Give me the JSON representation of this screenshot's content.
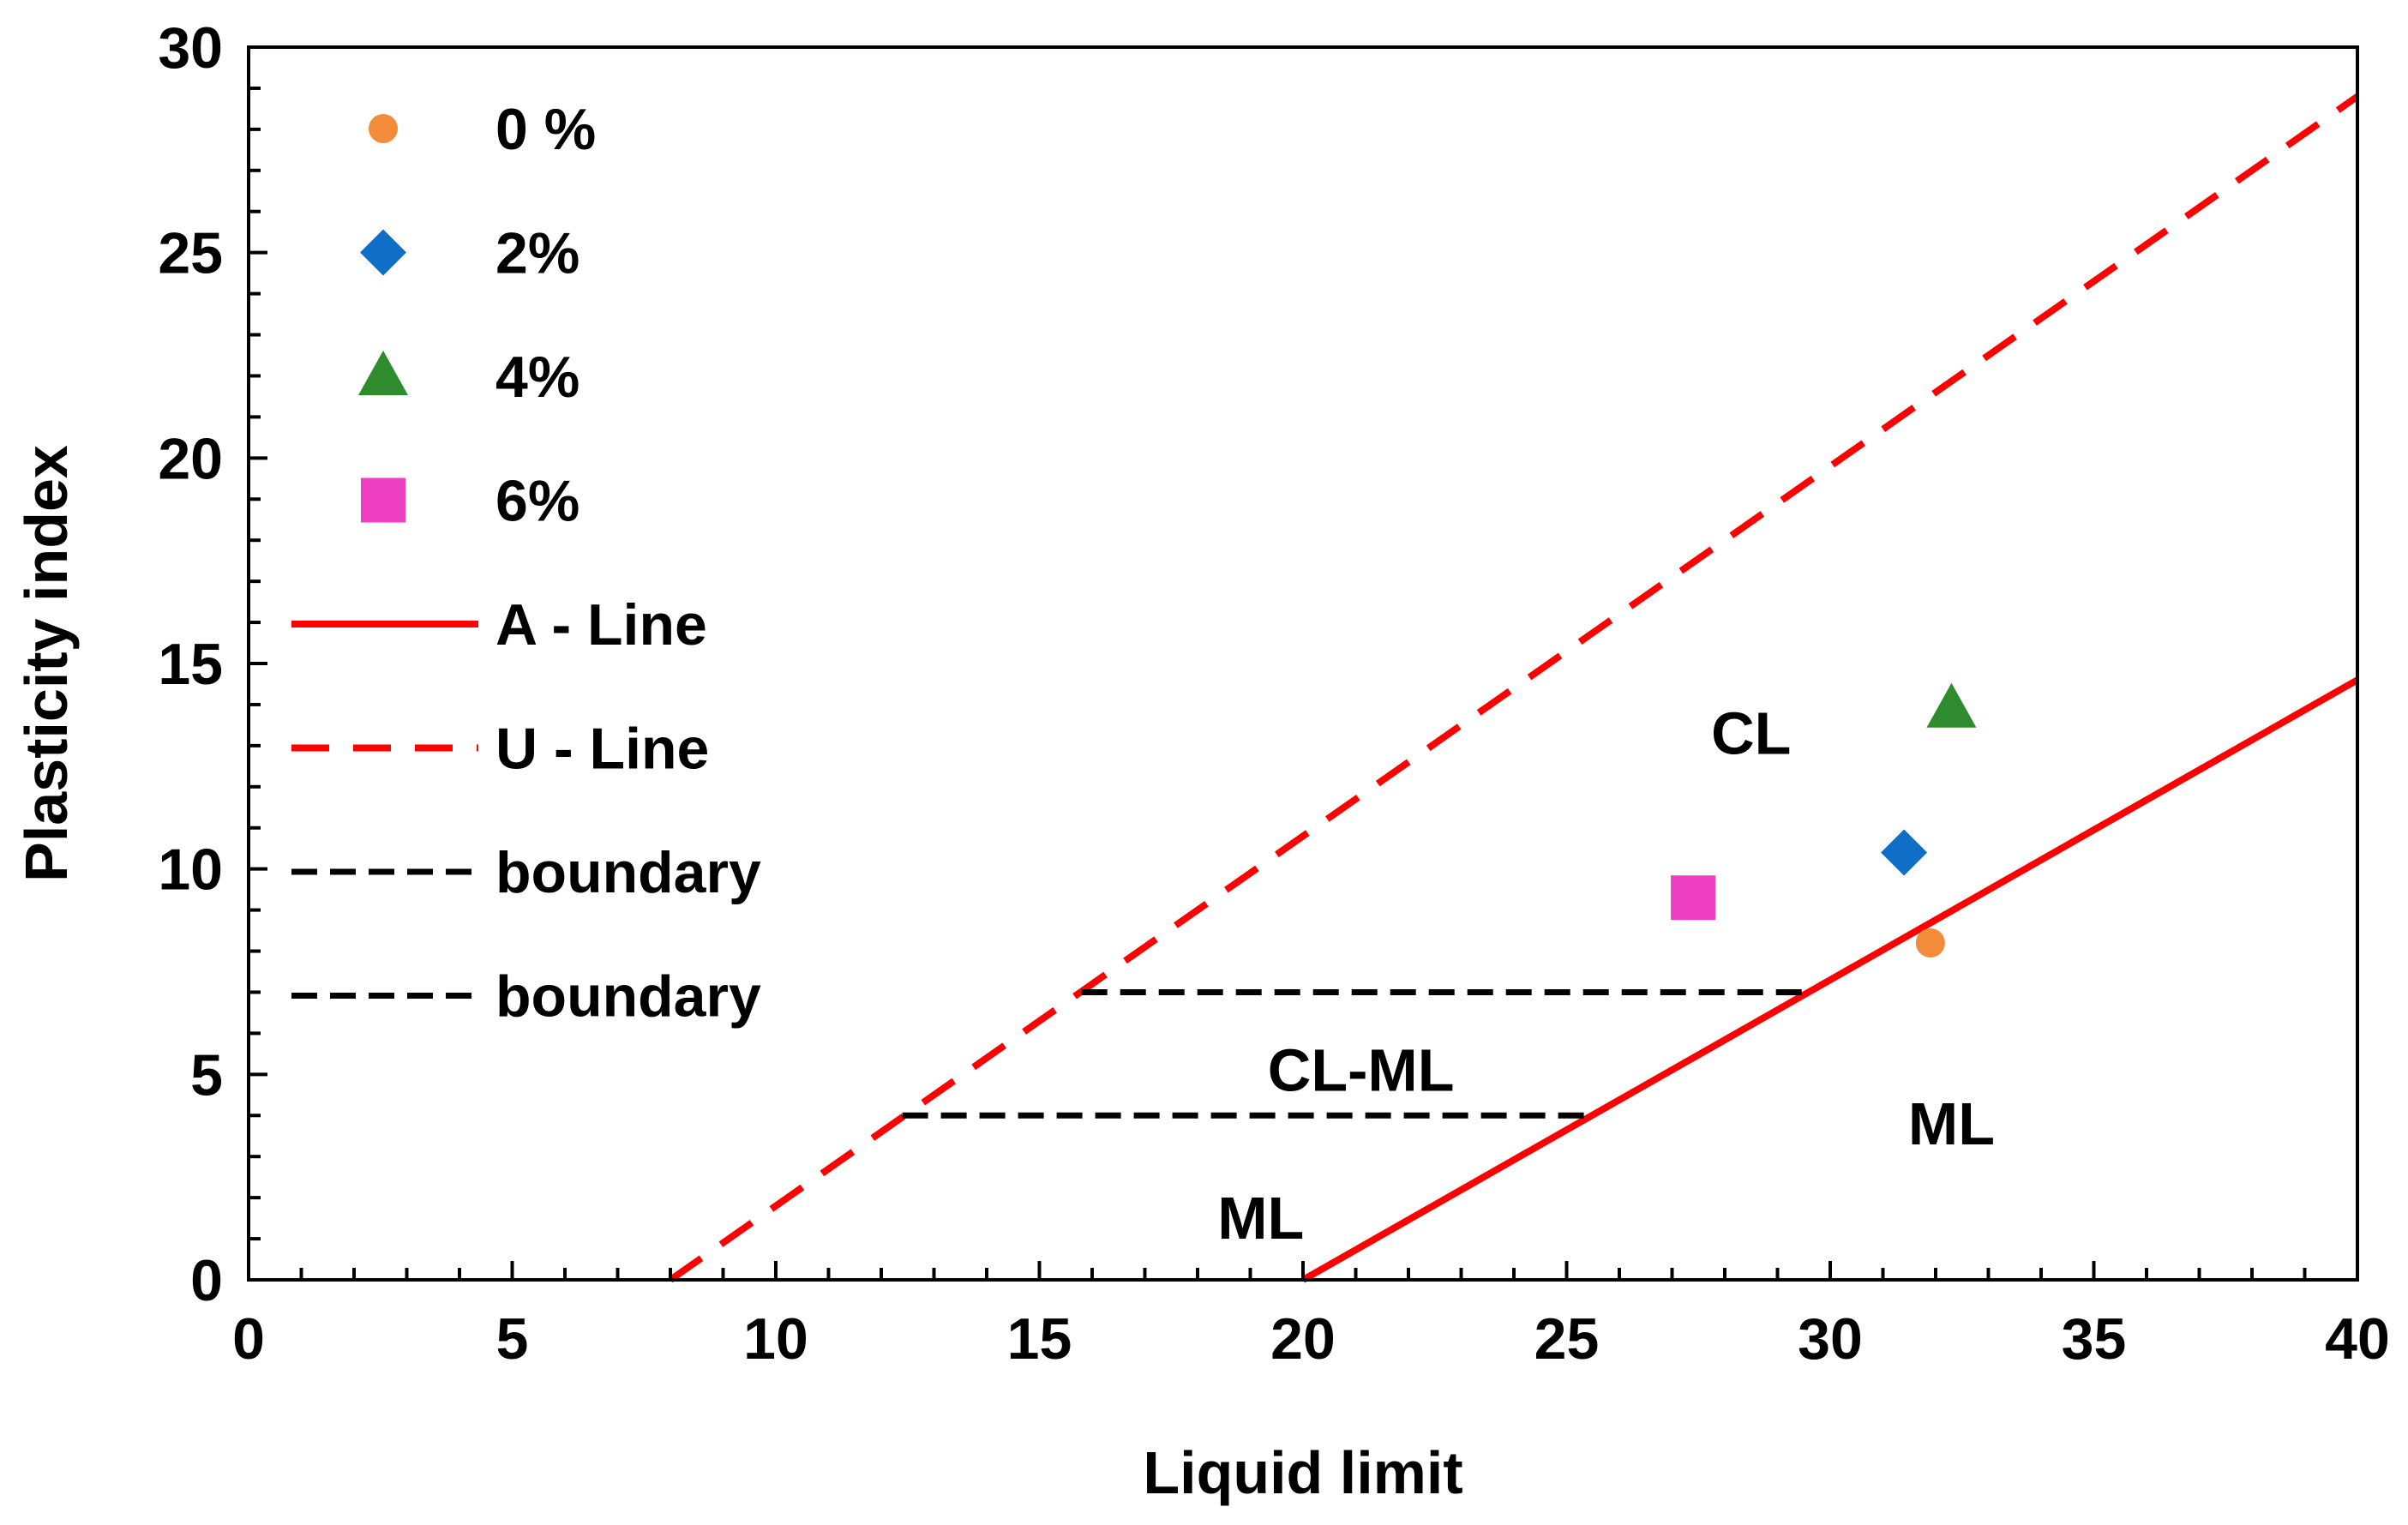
{
  "chart_data": {
    "type": "scatter",
    "title": "",
    "xlabel": "Liquid limit",
    "ylabel": "Plasticity index",
    "xlim": [
      0,
      40
    ],
    "ylim": [
      0,
      30
    ],
    "x_ticks": [
      0,
      5,
      10,
      15,
      20,
      25,
      30,
      35,
      40
    ],
    "y_ticks": [
      0,
      5,
      10,
      15,
      20,
      25,
      30
    ],
    "x_tick_labels": [
      "0",
      "5",
      "10",
      "15",
      "20",
      "25",
      "30",
      "35",
      "40"
    ],
    "y_tick_labels": [
      "0",
      "5",
      "10",
      "15",
      "20",
      "25",
      "30"
    ],
    "grid": false,
    "legend_position": "top-left",
    "series": [
      {
        "name": "0 %",
        "marker": "circle",
        "color": "#F28C3A",
        "points": [
          {
            "x": 31.9,
            "y": 8.2
          }
        ]
      },
      {
        "name": "2%",
        "marker": "diamond",
        "color": "#0F6FC6",
        "points": [
          {
            "x": 31.4,
            "y": 10.4
          }
        ]
      },
      {
        "name": "4%",
        "marker": "triangle",
        "color": "#2E8B2E",
        "points": [
          {
            "x": 32.3,
            "y": 13.9
          }
        ]
      },
      {
        "name": "6%",
        "marker": "square",
        "color": "#EE3FC2",
        "points": [
          {
            "x": 27.4,
            "y": 9.3
          }
        ]
      }
    ],
    "lines": [
      {
        "name": "A - Line",
        "style": "solid",
        "color": "#FF0000",
        "points": [
          {
            "x": 20,
            "y": 0
          },
          {
            "x": 40,
            "y": 14.6
          }
        ]
      },
      {
        "name": "U - Line",
        "style": "dashed",
        "color": "#FF0000",
        "points": [
          {
            "x": 8,
            "y": 0
          },
          {
            "x": 40,
            "y": 28.8
          }
        ]
      },
      {
        "name": "boundary",
        "style": "dashed",
        "color": "#000000",
        "points": [
          {
            "x": 15.8,
            "y": 7
          },
          {
            "x": 29.6,
            "y": 7
          }
        ]
      },
      {
        "name": "boundary",
        "style": "dashed",
        "color": "#000000",
        "points": [
          {
            "x": 12.4,
            "y": 4
          },
          {
            "x": 25.5,
            "y": 4
          }
        ]
      }
    ],
    "annotations": [
      {
        "text": "CL",
        "x": 28.5,
        "y": 13.3
      },
      {
        "text": "CL-ML",
        "x": 21.1,
        "y": 5.1
      },
      {
        "text": "ML",
        "x": 32.3,
        "y": 3.8
      },
      {
        "text": "ML",
        "x": 19.2,
        "y": 1.5
      }
    ]
  }
}
